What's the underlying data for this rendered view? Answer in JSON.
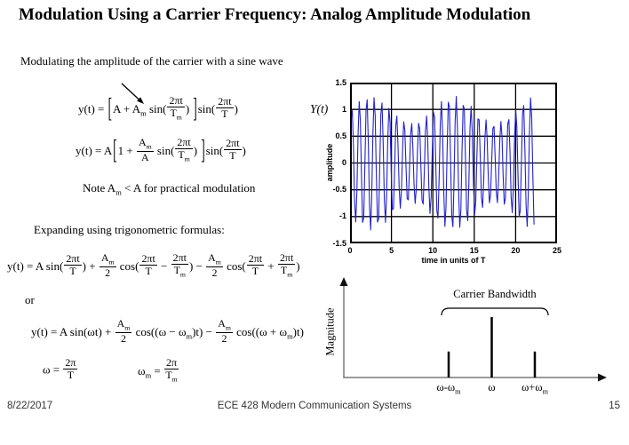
{
  "slide": {
    "title": "Modulation Using a Carrier Frequency: Analog Amplitude Modulation",
    "footer": {
      "date": "8/22/2017",
      "course": "ECE 428 Modern Communication Systems",
      "page": "15"
    }
  },
  "content": {
    "intro": "Modulating the amplitude of the carrier with a sine wave",
    "eq_carrier": "y(t) = [[A + A_{m} sin(#{2πt|T_{m}}) ]]sin(#{2πt|T})",
    "eq_normalized": "y(t) = A[[1 + #{A_{m}|A} sin(#{2πt|T_{m}}) ]]sin(#{2πt|T})",
    "note": "Note  A_{m} < A for practical modulation",
    "expanding": "Expanding using trigonometric formulas:",
    "eq_expanded": "y(t) = A sin(#{2πt|T}) + #{A_{m}|2} cos(#{2πt|T} − #{2πt|T_{m}}) − #{A_{m}|2} cos(#{2πt|T} + #{2πt|T_{m}})",
    "or_label": "or",
    "eq_omega": "y(t) = A sin(ωt) + #{A_{m}|2} cos((ω − ω_{m})t) − #{A_{m}|2} cos((ω + ω_{m})t)",
    "eq_omega_def": "ω = #{2π|T}",
    "eq_omega_m_def": "ω_{m} = #{2π|T_{m}}"
  },
  "chart_data": [
    {
      "type": "line",
      "curve_label": "Y(t)",
      "xlabel": "time in units of T",
      "ylabel": "amplitude",
      "xlim": [
        0,
        25
      ],
      "ylim": [
        -1.5,
        1.5
      ],
      "xticks": [
        0,
        5,
        10,
        15,
        20,
        25
      ],
      "yticks": [
        1.5,
        1,
        0.5,
        0,
        -0.5,
        -1,
        -1.5
      ],
      "grid": true,
      "line_color": "#2121cd",
      "signal": {
        "formula": "y(t) = (A + Am·sin(2πt/Tm))·sin(2πt/T)",
        "A": 1,
        "Am": 0.25,
        "carrier_period_T": 0.9,
        "modulation_period_T": 10,
        "t_start": 0,
        "t_end": 22.35,
        "sample_step": 0.138
      }
    },
    {
      "type": "stem",
      "ylabel": "Magnitude",
      "annotation": "Carrier Bandwidth",
      "categories": [
        "ω-ω_{m}",
        "ω",
        "ω+ω_{m}"
      ],
      "values": [
        0.43,
        1,
        0.43
      ]
    }
  ]
}
